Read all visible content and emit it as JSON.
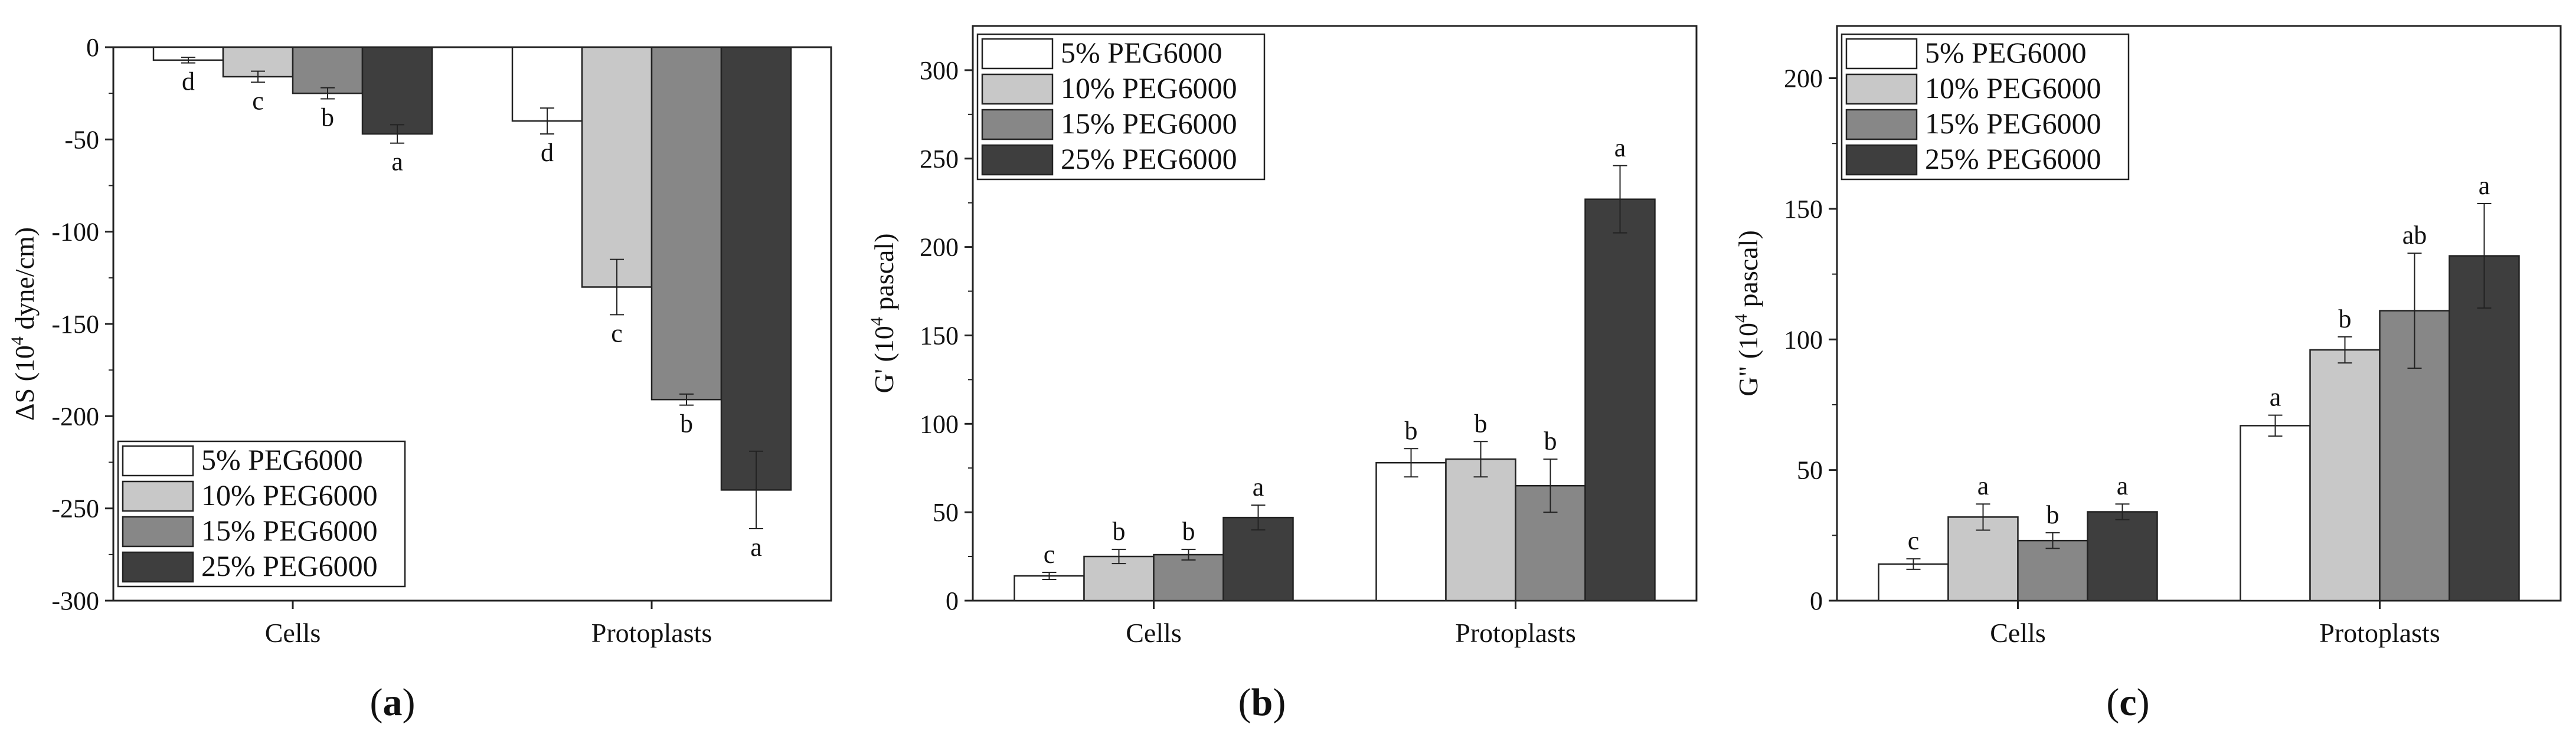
{
  "figure": {
    "legend_series": [
      "5% PEG6000",
      "10% PEG6000",
      "15% PEG6000",
      "25% PEG6000"
    ],
    "colors": [
      "#ffffff",
      "#c8c8c8",
      "#878787",
      "#3e3e3e"
    ]
  },
  "chart_data": [
    {
      "type": "bar",
      "panel_label_open": "(",
      "panel_label_letter": "a",
      "panel_label_close": ")",
      "ylabel_prefix": "ΔS (10",
      "ylabel_sup": "4",
      "ylabel_suffix": " dyne/cm)",
      "ylim": [
        -300,
        0
      ],
      "yticks": [
        0,
        -50,
        -100,
        -150,
        -200,
        -250,
        -300
      ],
      "legend_position": "bottom-left",
      "categories": [
        "Cells",
        "Protoplasts"
      ],
      "series": [
        {
          "name": "5% PEG6000",
          "values": [
            -7,
            -40
          ],
          "errors": [
            1.5,
            7
          ],
          "letters": [
            "d",
            "d"
          ]
        },
        {
          "name": "10% PEG6000",
          "values": [
            -16,
            -130
          ],
          "errors": [
            3,
            15
          ],
          "letters": [
            "c",
            "c"
          ]
        },
        {
          "name": "15% PEG6000",
          "values": [
            -25,
            -191
          ],
          "errors": [
            3,
            3
          ],
          "letters": [
            "b",
            "b"
          ]
        },
        {
          "name": "25% PEG6000",
          "values": [
            -47,
            -240
          ],
          "errors": [
            5,
            21
          ],
          "letters": [
            "a",
            "a"
          ]
        }
      ]
    },
    {
      "type": "bar",
      "panel_label_open": "(",
      "panel_label_letter": "b",
      "panel_label_close": ")",
      "ylabel_prefix": "G' (10",
      "ylabel_sup": "4",
      "ylabel_suffix": " pascal)",
      "ylim": [
        0,
        325
      ],
      "yticks": [
        0,
        50,
        100,
        150,
        200,
        250,
        300
      ],
      "legend_position": "top-left",
      "categories": [
        "Cells",
        "Protoplasts"
      ],
      "series": [
        {
          "name": "5% PEG6000",
          "values": [
            14,
            78
          ],
          "errors": [
            2,
            8
          ],
          "letters": [
            "c",
            "b"
          ]
        },
        {
          "name": "10% PEG6000",
          "values": [
            25,
            80
          ],
          "errors": [
            4,
            10
          ],
          "letters": [
            "b",
            "b"
          ]
        },
        {
          "name": "15% PEG6000",
          "values": [
            26,
            65
          ],
          "errors": [
            3,
            15
          ],
          "letters": [
            "b",
            "b"
          ]
        },
        {
          "name": "25% PEG6000",
          "values": [
            47,
            227
          ],
          "errors": [
            7,
            19
          ],
          "letters": [
            "a",
            "a"
          ]
        }
      ]
    },
    {
      "type": "bar",
      "panel_label_open": "(",
      "panel_label_letter": "c",
      "panel_label_close": ")",
      "ylabel_prefix": "G\" (10",
      "ylabel_sup": "4",
      "ylabel_suffix": " pascal)",
      "ylim": [
        0,
        220
      ],
      "yticks": [
        0,
        50,
        100,
        150,
        200
      ],
      "legend_position": "top-left",
      "categories": [
        "Cells",
        "Protoplasts"
      ],
      "series": [
        {
          "name": "5% PEG6000",
          "values": [
            14,
            67
          ],
          "errors": [
            2,
            4
          ],
          "letters": [
            "c",
            "a"
          ]
        },
        {
          "name": "10% PEG6000",
          "values": [
            32,
            96
          ],
          "errors": [
            5,
            5
          ],
          "letters": [
            "a",
            "b"
          ]
        },
        {
          "name": "15% PEG6000",
          "values": [
            23,
            111
          ],
          "errors": [
            3,
            22
          ],
          "letters": [
            "b",
            "ab"
          ]
        },
        {
          "name": "25% PEG6000",
          "values": [
            34,
            132
          ],
          "errors": [
            3,
            20
          ],
          "letters": [
            "a",
            "a"
          ]
        }
      ]
    }
  ]
}
